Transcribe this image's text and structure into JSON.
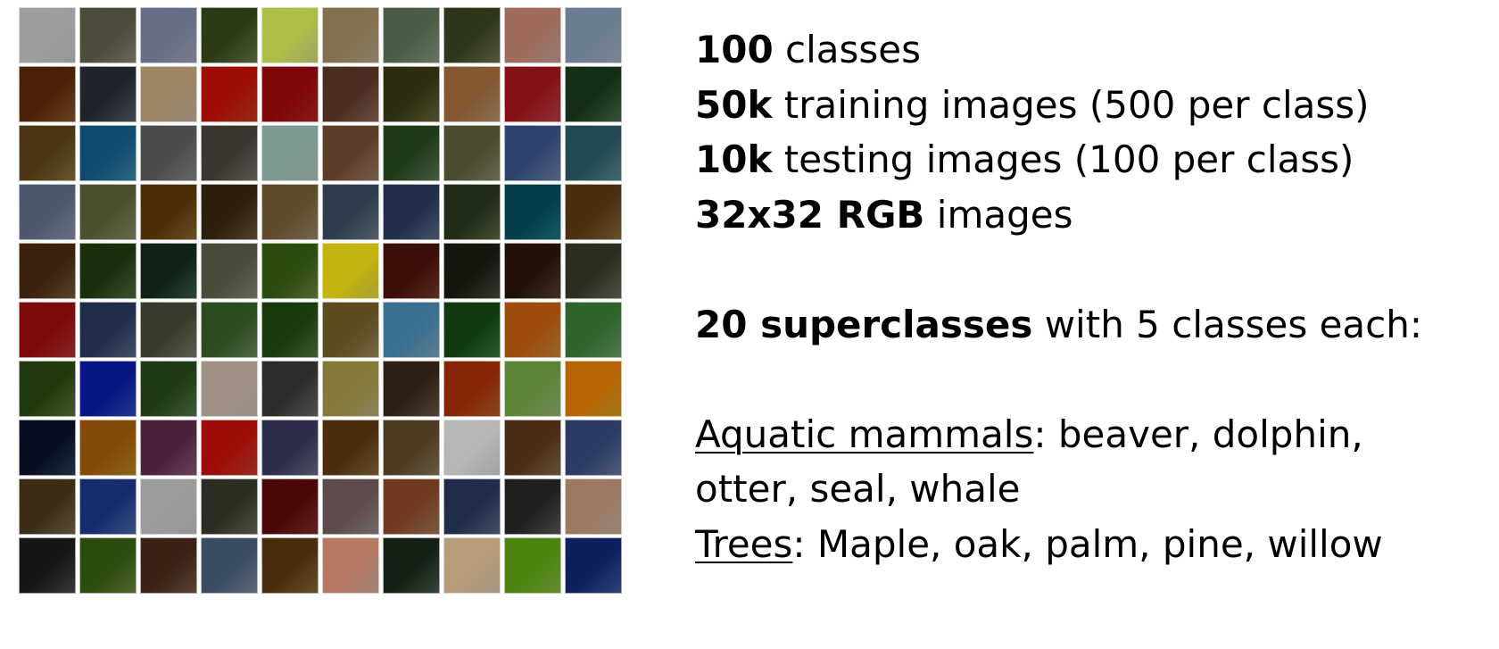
{
  "thumbnails": [
    [
      "#c9c9c9",
      "#8c8a79",
      "#a2a7b8",
      "#6a7b4a",
      "#d3dc86",
      "#b7a98d",
      "#8b9a86",
      "#6e7651",
      "#c9a59a",
      "#a6b2c0"
    ],
    [
      "#8b5a2a",
      "#5b6068",
      "#c9b8a0",
      "#c83a22",
      "#b42626",
      "#8b6a5a",
      "#6b6a3c",
      "#b8956f",
      "#b8424b",
      "#4a6e4b"
    ],
    [
      "#8a7541",
      "#3c8aa8",
      "#8a8a8a",
      "#7a756c",
      "#b2c6c0",
      "#9a7c66",
      "#5c7a52",
      "#8a8a6c",
      "#6d83a8",
      "#5d8a90"
    ],
    [
      "#8c96a8",
      "#8a8f6a",
      "#8c6a2c",
      "#6a5a3a",
      "#9a8a6a",
      "#6c7c8a",
      "#5a6c8a",
      "#5b6a4a",
      "#1c7c8a",
      "#8a6c3c"
    ],
    [
      "#7a5a3a",
      "#4e6e3c",
      "#3c5c4c",
      "#8a8a7a",
      "#6a8a3c",
      "#e0d640",
      "#7a3a2a",
      "#4a4a3a",
      "#5a4030",
      "#6a6a5a"
    ],
    [
      "#b23232",
      "#5a6a8a",
      "#7a7a6a",
      "#6a8a5a",
      "#4f7a3a",
      "#9a8a5a",
      "#7aa8c0",
      "#3c7a3c",
      "#c88a3a",
      "#6ca06a"
    ],
    [
      "#5a7a3a",
      "#2c4ab8",
      "#5a7a4a",
      "#cac0b8",
      "#6a6a6a",
      "#b8b07a",
      "#6a5a4a",
      "#b8602a",
      "#9ab878",
      "#d8a020"
    ],
    [
      "#2c3c5a",
      "#b8882a",
      "#8a5a7a",
      "#c83a2a",
      "#6a6a8a",
      "#8a6a3a",
      "#8a7a5a",
      "#d8d8d8",
      "#8a6a4a",
      "#6a7aa0"
    ],
    [
      "#7a6a4a",
      "#4a6aa8",
      "#c8c8c8",
      "#6a6a5a",
      "#8a2a2a",
      "#9a8a8a",
      "#a87a5a",
      "#5a6a8a",
      "#5a5a5a",
      "#c8b0a0"
    ],
    [
      "#4a4a4a",
      "#6a8a3a",
      "#7a5a4a",
      "#7a8aa0",
      "#8a6a3a",
      "#d8b0a0",
      "#4a5a4a",
      "#d8c8b0",
      "#8ab840",
      "#3a5a9a"
    ]
  ],
  "text": {
    "line1_bold": "100",
    "line1_rest": " classes",
    "line2_bold": "50k",
    "line2_rest": " training images (500 per class)",
    "line3_bold": "10k",
    "line3_rest": " testing images (100 per class)",
    "line4_bold": "32x32 RGB",
    "line4_rest": " images",
    "line5_bold": "20 superclasses",
    "line5_rest": " with 5 classes each:",
    "line6_underlined": "Aquatic mammals",
    "line6_rest": ": beaver, dolphin,",
    "line7": "otter, seal, whale",
    "line8_underlined": "Trees",
    "line8_rest": ": Maple, oak, palm, pine, willow"
  }
}
